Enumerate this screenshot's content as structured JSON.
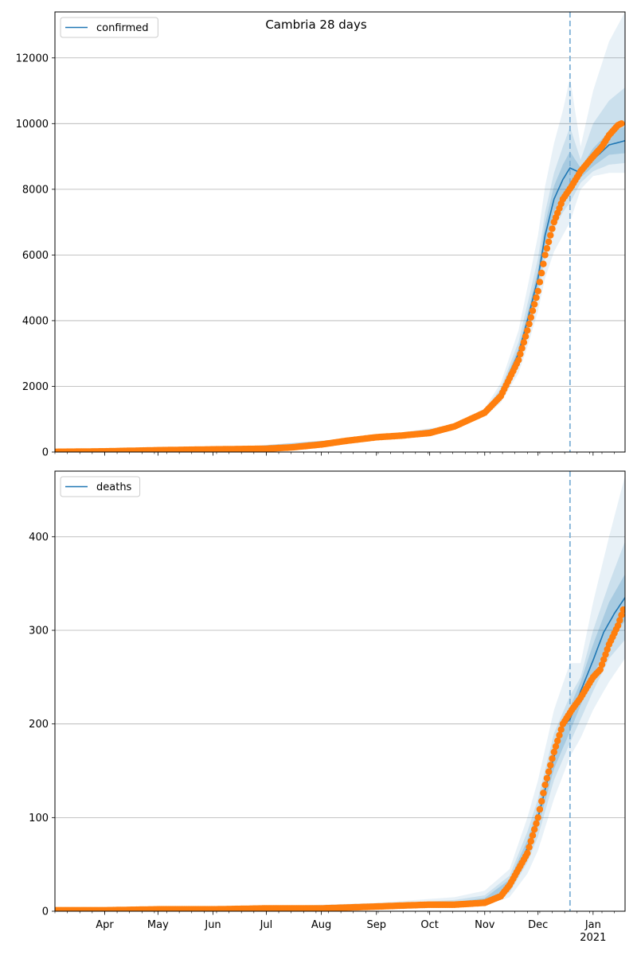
{
  "title": "Cambria 28 days",
  "colors": {
    "model": "#1f77b4",
    "observed": "#ff7f0e",
    "grid": "#b0b0b0",
    "vline": "#7fb1d6"
  },
  "x_axis": {
    "start": "2020-03-04",
    "end": "2021-01-19",
    "tick_labels": [
      {
        "date": "2020-04-01",
        "label": "Apr"
      },
      {
        "date": "2020-05-01",
        "label": "May"
      },
      {
        "date": "2020-06-01",
        "label": "Jun"
      },
      {
        "date": "2020-07-01",
        "label": "Jul"
      },
      {
        "date": "2020-08-01",
        "label": "Aug"
      },
      {
        "date": "2020-09-01",
        "label": "Sep"
      },
      {
        "date": "2020-10-01",
        "label": "Oct"
      },
      {
        "date": "2020-11-01",
        "label": "Nov"
      },
      {
        "date": "2020-12-01",
        "label": "Dec"
      },
      {
        "date": "2021-01-01",
        "label": "Jan",
        "sublabel": "2021"
      }
    ],
    "forecast_start": "2020-12-19"
  },
  "chart_data": [
    {
      "type": "line",
      "legend": "confirmed",
      "legend_position": "top-left",
      "ylim": [
        0,
        13400
      ],
      "yticks": [
        0,
        2000,
        4000,
        6000,
        8000,
        10000,
        12000
      ],
      "grid": true,
      "observed_knots": [
        [
          "2020-03-04",
          5
        ],
        [
          "2020-04-01",
          20
        ],
        [
          "2020-05-01",
          55
        ],
        [
          "2020-06-01",
          80
        ],
        [
          "2020-07-01",
          100
        ],
        [
          "2020-07-15",
          140
        ],
        [
          "2020-08-01",
          230
        ],
        [
          "2020-08-15",
          340
        ],
        [
          "2020-09-01",
          450
        ],
        [
          "2020-09-15",
          500
        ],
        [
          "2020-10-01",
          580
        ],
        [
          "2020-10-15",
          780
        ],
        [
          "2020-11-01",
          1200
        ],
        [
          "2020-11-10",
          1700
        ],
        [
          "2020-11-20",
          2800
        ],
        [
          "2020-11-25",
          3700
        ],
        [
          "2020-12-01",
          4900
        ],
        [
          "2020-12-05",
          6000
        ],
        [
          "2020-12-10",
          7000
        ],
        [
          "2020-12-15",
          7700
        ],
        [
          "2020-12-20",
          8100
        ],
        [
          "2020-12-25",
          8550
        ],
        [
          "2021-01-01",
          9000
        ],
        [
          "2021-01-06",
          9300
        ],
        [
          "2021-01-10",
          9650
        ],
        [
          "2021-01-15",
          9950
        ],
        [
          "2021-01-17",
          10000
        ]
      ],
      "model_knots": [
        [
          "2020-03-04",
          5
        ],
        [
          "2020-04-01",
          20
        ],
        [
          "2020-05-01",
          55
        ],
        [
          "2020-06-01",
          80
        ],
        [
          "2020-07-01",
          100
        ],
        [
          "2020-07-15",
          140
        ],
        [
          "2020-08-01",
          230
        ],
        [
          "2020-08-15",
          340
        ],
        [
          "2020-09-01",
          450
        ],
        [
          "2020-09-15",
          500
        ],
        [
          "2020-10-01",
          580
        ],
        [
          "2020-10-15",
          780
        ],
        [
          "2020-11-01",
          1200
        ],
        [
          "2020-11-10",
          1800
        ],
        [
          "2020-11-20",
          3000
        ],
        [
          "2020-11-25",
          4000
        ],
        [
          "2020-12-01",
          5300
        ],
        [
          "2020-12-05",
          6600
        ],
        [
          "2020-12-10",
          7700
        ],
        [
          "2020-12-15",
          8300
        ],
        [
          "2020-12-19",
          8650
        ],
        [
          "2020-12-25",
          8500
        ],
        [
          "2021-01-01",
          8900
        ],
        [
          "2021-01-10",
          9350
        ],
        [
          "2021-01-19",
          9480
        ]
      ],
      "bands": [
        {
          "opacity": 0.1,
          "knots": [
            [
              "2020-03-04",
              0,
              10
            ],
            [
              "2020-06-01",
              70,
              90
            ],
            [
              "2020-09-01",
              420,
              480
            ],
            [
              "2020-10-15",
              720,
              840
            ],
            [
              "2020-11-01",
              1080,
              1330
            ],
            [
              "2020-11-10",
              1500,
              2100
            ],
            [
              "2020-11-20",
              2400,
              3700
            ],
            [
              "2020-11-25",
              3200,
              5000
            ],
            [
              "2020-12-01",
              4300,
              6600
            ],
            [
              "2020-12-05",
              5300,
              8100
            ],
            [
              "2020-12-10",
              6100,
              9400
            ],
            [
              "2020-12-15",
              6600,
              10400
            ],
            [
              "2020-12-19",
              7000,
              11400
            ],
            [
              "2020-12-25",
              8000,
              9300
            ],
            [
              "2021-01-01",
              8400,
              11000
            ],
            [
              "2021-01-10",
              8500,
              12500
            ],
            [
              "2021-01-19",
              8500,
              13400
            ]
          ]
        },
        {
          "opacity": 0.14,
          "knots": [
            [
              "2020-03-04",
              1,
              9
            ],
            [
              "2020-06-01",
              73,
              87
            ],
            [
              "2020-09-01",
              430,
              470
            ],
            [
              "2020-10-15",
              745,
              815
            ],
            [
              "2020-11-01",
              1130,
              1270
            ],
            [
              "2020-11-10",
              1600,
              1950
            ],
            [
              "2020-11-20",
              2650,
              3350
            ],
            [
              "2020-11-25",
              3550,
              4500
            ],
            [
              "2020-12-01",
              4800,
              5900
            ],
            [
              "2020-12-05",
              5900,
              7300
            ],
            [
              "2020-12-10",
              6800,
              8500
            ],
            [
              "2020-12-15",
              7300,
              9300
            ],
            [
              "2020-12-19",
              7600,
              9900
            ],
            [
              "2020-12-25",
              8200,
              8900
            ],
            [
              "2021-01-01",
              8550,
              10000
            ],
            [
              "2021-01-10",
              8750,
              10700
            ],
            [
              "2021-01-19",
              8800,
              11100
            ]
          ]
        },
        {
          "opacity": 0.2,
          "knots": [
            [
              "2020-03-04",
              3,
              7
            ],
            [
              "2020-06-01",
              77,
              83
            ],
            [
              "2020-09-01",
              440,
              460
            ],
            [
              "2020-10-15",
              765,
              795
            ],
            [
              "2020-11-01",
              1170,
              1230
            ],
            [
              "2020-11-10",
              1720,
              1880
            ],
            [
              "2020-11-20",
              2850,
              3150
            ],
            [
              "2020-11-25",
              3800,
              4200
            ],
            [
              "2020-12-01",
              5050,
              5550
            ],
            [
              "2020-12-05",
              6250,
              6950
            ],
            [
              "2020-12-10",
              7300,
              8100
            ],
            [
              "2020-12-15",
              7850,
              8750
            ],
            [
              "2020-12-19",
              8150,
              9150
            ],
            [
              "2020-12-25",
              8350,
              8650
            ],
            [
              "2021-01-01",
              8700,
              9250
            ],
            [
              "2021-01-10",
              9050,
              9750
            ],
            [
              "2021-01-19",
              9100,
              9900
            ]
          ]
        }
      ]
    },
    {
      "type": "line",
      "legend": "deaths",
      "legend_position": "top-left",
      "ylim": [
        0,
        470
      ],
      "yticks": [
        0,
        100,
        200,
        300,
        400
      ],
      "grid": true,
      "observed_knots": [
        [
          "2020-03-04",
          1
        ],
        [
          "2020-04-01",
          1
        ],
        [
          "2020-05-01",
          2
        ],
        [
          "2020-06-01",
          2
        ],
        [
          "2020-07-01",
          3
        ],
        [
          "2020-08-01",
          3
        ],
        [
          "2020-09-01",
          5
        ],
        [
          "2020-09-15",
          6
        ],
        [
          "2020-10-01",
          7
        ],
        [
          "2020-10-15",
          7
        ],
        [
          "2020-11-01",
          9
        ],
        [
          "2020-11-10",
          16
        ],
        [
          "2020-11-15",
          28
        ],
        [
          "2020-11-20",
          45
        ],
        [
          "2020-11-25",
          62
        ],
        [
          "2020-12-01",
          100
        ],
        [
          "2020-12-05",
          135
        ],
        [
          "2020-12-10",
          170
        ],
        [
          "2020-12-15",
          200
        ],
        [
          "2020-12-20",
          215
        ],
        [
          "2020-12-25",
          228
        ],
        [
          "2021-01-01",
          250
        ],
        [
          "2021-01-05",
          258
        ],
        [
          "2021-01-10",
          285
        ],
        [
          "2021-01-15",
          305
        ],
        [
          "2021-01-18",
          322
        ]
      ],
      "model_knots": [
        [
          "2020-03-04",
          1
        ],
        [
          "2020-04-01",
          1
        ],
        [
          "2020-05-01",
          2
        ],
        [
          "2020-06-01",
          2
        ],
        [
          "2020-07-01",
          3
        ],
        [
          "2020-08-01",
          3
        ],
        [
          "2020-09-01",
          5
        ],
        [
          "2020-09-15",
          6
        ],
        [
          "2020-10-01",
          7
        ],
        [
          "2020-10-15",
          8
        ],
        [
          "2020-11-01",
          12
        ],
        [
          "2020-11-10",
          18
        ],
        [
          "2020-11-15",
          30
        ],
        [
          "2020-11-20",
          45
        ],
        [
          "2020-11-25",
          68
        ],
        [
          "2020-12-01",
          100
        ],
        [
          "2020-12-05",
          130
        ],
        [
          "2020-12-10",
          165
        ],
        [
          "2020-12-15",
          198
        ],
        [
          "2020-12-19",
          205
        ],
        [
          "2020-12-25",
          235
        ],
        [
          "2021-01-01",
          268
        ],
        [
          "2021-01-07",
          298
        ],
        [
          "2021-01-13",
          318
        ],
        [
          "2021-01-19",
          335
        ]
      ],
      "bands": [
        {
          "opacity": 0.1,
          "knots": [
            [
              "2020-03-04",
              0,
              2
            ],
            [
              "2020-07-01",
              1,
              5
            ],
            [
              "2020-09-01",
              2,
              9
            ],
            [
              "2020-10-15",
              4,
              15
            ],
            [
              "2020-11-01",
              6,
              22
            ],
            [
              "2020-11-15",
              15,
              45
            ],
            [
              "2020-11-25",
              40,
              100
            ],
            [
              "2020-12-01",
              65,
              140
            ],
            [
              "2020-12-10",
              120,
              215
            ],
            [
              "2020-12-19",
              165,
              265
            ],
            [
              "2020-12-25",
              185,
              265
            ],
            [
              "2021-01-01",
              215,
              330
            ],
            [
              "2021-01-10",
              245,
              400
            ],
            [
              "2021-01-19",
              270,
              465
            ]
          ]
        },
        {
          "opacity": 0.14,
          "knots": [
            [
              "2020-03-04",
              0,
              2
            ],
            [
              "2020-07-01",
              2,
              4
            ],
            [
              "2020-09-01",
              3,
              7
            ],
            [
              "2020-10-15",
              5,
              12
            ],
            [
              "2020-11-01",
              8,
              17
            ],
            [
              "2020-11-15",
              20,
              38
            ],
            [
              "2020-11-25",
              52,
              85
            ],
            [
              "2020-12-01",
              80,
              120
            ],
            [
              "2020-12-10",
              140,
              190
            ],
            [
              "2020-12-19",
              180,
              230
            ],
            [
              "2020-12-25",
              205,
              250
            ],
            [
              "2021-01-01",
              235,
              300
            ],
            [
              "2021-01-10",
              270,
              350
            ],
            [
              "2021-01-19",
              290,
              395
            ]
          ]
        },
        {
          "opacity": 0.2,
          "knots": [
            [
              "2020-03-04",
              1,
              1
            ],
            [
              "2020-07-01",
              2,
              3
            ],
            [
              "2020-09-01",
              4,
              6
            ],
            [
              "2020-10-15",
              6,
              10
            ],
            [
              "2020-11-01",
              10,
              14
            ],
            [
              "2020-11-15",
              25,
              34
            ],
            [
              "2020-11-25",
              60,
              76
            ],
            [
              "2020-12-01",
              90,
              110
            ],
            [
              "2020-12-10",
              152,
              178
            ],
            [
              "2020-12-19",
              192,
              218
            ],
            [
              "2020-12-25",
              220,
              245
            ],
            [
              "2021-01-01",
              250,
              285
            ],
            [
              "2021-01-10",
              290,
              330
            ],
            [
              "2021-01-19",
              310,
              360
            ]
          ]
        }
      ]
    }
  ]
}
